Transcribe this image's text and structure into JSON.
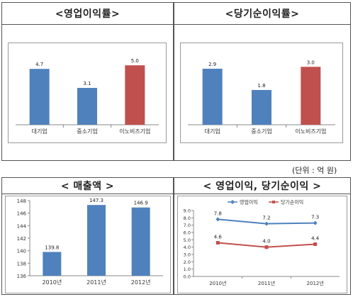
{
  "unit_label": "(단위 : 억 원)",
  "panels": {
    "p1": {
      "title": "<영업이익률>"
    },
    "p2": {
      "title": "<당기순이익률>"
    },
    "p3": {
      "title": "< 매출액 >"
    },
    "p4": {
      "title": "< 영업이익, 당기순이익 >"
    }
  },
  "chart_data": [
    {
      "type": "bar",
      "categories": [
        "대기업",
        "중소기업",
        "이노비즈기업"
      ],
      "values": [
        4.7,
        3.1,
        5.0
      ],
      "value_labels": [
        "4.7",
        "3.1",
        "5.0"
      ],
      "colors": [
        "#4F81BD",
        "#4F81BD",
        "#C0504D"
      ],
      "ylim": [
        0,
        6.5
      ],
      "title": "<영업이익률>"
    },
    {
      "type": "bar",
      "categories": [
        "대기업",
        "중소기업",
        "이노비즈기업"
      ],
      "values": [
        2.9,
        1.8,
        3.0
      ],
      "value_labels": [
        "2.9",
        "1.8",
        "3.0"
      ],
      "colors": [
        "#4F81BD",
        "#4F81BD",
        "#C0504D"
      ],
      "ylim": [
        0,
        4.0
      ],
      "title": "<당기순이익률>"
    },
    {
      "type": "bar",
      "categories": [
        "2010년",
        "2011년",
        "2012년"
      ],
      "values": [
        139.8,
        147.3,
        146.9
      ],
      "value_labels": [
        "139.8",
        "147.3",
        "146.9"
      ],
      "colors": [
        "#4F81BD",
        "#4F81BD",
        "#4F81BD"
      ],
      "ylim": [
        136,
        148
      ],
      "yticks": [
        "136",
        "138",
        "140",
        "142",
        "144",
        "146",
        "148"
      ],
      "title": "< 매출액 >"
    },
    {
      "type": "line",
      "categories": [
        "2010년",
        "2011년",
        "2012년"
      ],
      "series": [
        {
          "name": "영업이익",
          "values": [
            7.8,
            7.2,
            7.3
          ],
          "labels": [
            "7.8",
            "7.2",
            "7.3"
          ],
          "color": "#4F81BD"
        },
        {
          "name": "당기순이익",
          "values": [
            4.6,
            4.0,
            4.4
          ],
          "labels": [
            "4.6",
            "4.0",
            "4.4"
          ],
          "color": "#C0504D"
        }
      ],
      "ylim": [
        0,
        9
      ],
      "yticks": [
        "0.0",
        "1.0",
        "2.0",
        "3.0",
        "4.0",
        "5.0",
        "6.0",
        "7.0",
        "8.0",
        "9.0"
      ],
      "legend": "top",
      "title": "< 영업이익, 당기순이익 >"
    }
  ]
}
